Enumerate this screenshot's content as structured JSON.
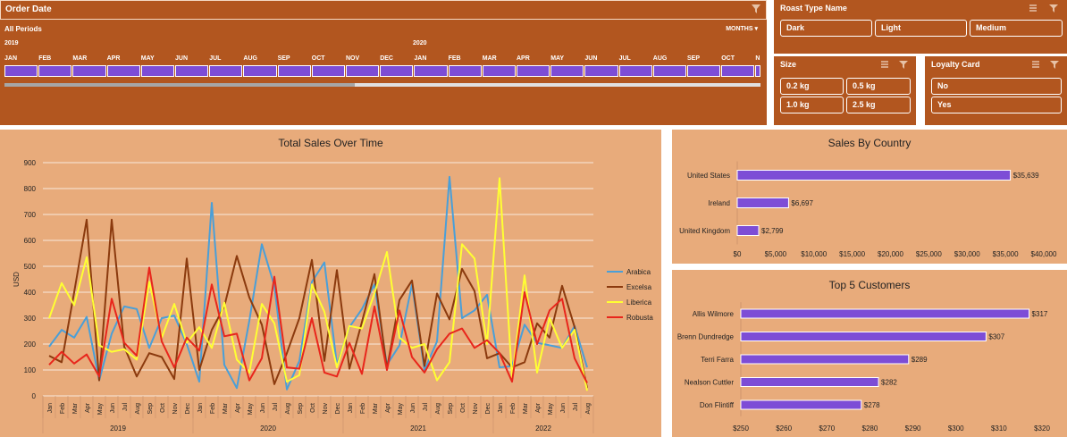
{
  "timeline": {
    "title": "Order Date",
    "periods_label": "All Periods",
    "level_label": "MONTHS",
    "years": [
      "2019",
      "2020"
    ],
    "months": [
      "JAN",
      "FEB",
      "MAR",
      "APR",
      "MAY",
      "JUN",
      "JUL",
      "AUG",
      "SEP",
      "OCT",
      "NOV",
      "DEC",
      "JAN",
      "FEB",
      "MAR",
      "APR",
      "MAY",
      "JUN",
      "JUL",
      "AUG",
      "SEP",
      "OCT",
      "N"
    ]
  },
  "slicers": {
    "roast": {
      "title": "Roast Type Name",
      "options": [
        "Dark",
        "Light",
        "Medium"
      ]
    },
    "size": {
      "title": "Size",
      "options": [
        "0.2 kg",
        "0.5 kg",
        "1.0 kg",
        "2.5 kg"
      ]
    },
    "loyalty": {
      "title": "Loyalty Card",
      "options": [
        "No",
        "Yes"
      ]
    }
  },
  "colors": {
    "panel_dark": "#b2561f",
    "panel_light": "#e8ab7b",
    "bar": "#7d4dd6",
    "arabica": "#4a9fd8",
    "excelsa": "#8b3a0e",
    "liberica": "#ffff33",
    "robusta": "#e8261c"
  },
  "chart_data": [
    {
      "type": "line",
      "title": "Total Sales Over Time",
      "ylabel": "USD",
      "ylim": [
        0,
        900
      ],
      "yticks": [
        0,
        100,
        200,
        300,
        400,
        500,
        600,
        700,
        800,
        900
      ],
      "x": [
        "Jan",
        "Feb",
        "Mar",
        "Apr",
        "May",
        "Jun",
        "Jul",
        "Aug",
        "Sep",
        "Oct",
        "Nov",
        "Dec",
        "Jan",
        "Feb",
        "Mar",
        "Apr",
        "May",
        "Jun",
        "Jul",
        "Aug",
        "Sep",
        "Oct",
        "Nov",
        "Dec",
        "Jan",
        "Feb",
        "Mar",
        "Apr",
        "May",
        "Jun",
        "Jul",
        "Aug",
        "Sep",
        "Oct",
        "Nov",
        "Dec",
        "Jan",
        "Feb",
        "Mar",
        "Apr",
        "May",
        "Jun",
        "Jul",
        "Aug"
      ],
      "year_groups": [
        {
          "label": "2019",
          "count": 12
        },
        {
          "label": "2020",
          "count": 12
        },
        {
          "label": "2021",
          "count": 12
        },
        {
          "label": "2022",
          "count": 8
        }
      ],
      "legend_position": "right",
      "series": [
        {
          "name": "Arabica",
          "values": [
            190,
            255,
            225,
            305,
            60,
            240,
            345,
            335,
            185,
            300,
            310,
            200,
            55,
            745,
            120,
            30,
            290,
            585,
            425,
            25,
            135,
            440,
            515,
            120,
            265,
            335,
            430,
            120,
            195,
            430,
            100,
            210,
            845,
            300,
            330,
            390,
            110,
            115,
            275,
            205,
            195,
            185,
            270,
            110
          ]
        },
        {
          "name": "Excelsa",
          "values": [
            155,
            130,
            400,
            680,
            60,
            680,
            190,
            75,
            165,
            150,
            65,
            530,
            100,
            255,
            345,
            540,
            380,
            275,
            45,
            165,
            300,
            525,
            135,
            485,
            105,
            285,
            470,
            105,
            370,
            445,
            115,
            395,
            295,
            490,
            405,
            145,
            165,
            110,
            130,
            280,
            225,
            425,
            265,
            30
          ]
        },
        {
          "name": "Liberica",
          "values": [
            300,
            435,
            350,
            535,
            195,
            170,
            180,
            140,
            440,
            225,
            355,
            205,
            265,
            185,
            360,
            140,
            90,
            355,
            280,
            55,
            80,
            430,
            325,
            110,
            270,
            260,
            395,
            555,
            225,
            185,
            200,
            60,
            130,
            585,
            530,
            200,
            840,
            70,
            465,
            90,
            300,
            185,
            255,
            20
          ]
        },
        {
          "name": "Robusta",
          "values": [
            120,
            170,
            125,
            160,
            75,
            375,
            205,
            155,
            495,
            210,
            110,
            225,
            175,
            430,
            230,
            240,
            60,
            145,
            460,
            110,
            105,
            300,
            90,
            75,
            205,
            85,
            345,
            100,
            330,
            150,
            90,
            180,
            240,
            260,
            185,
            215,
            165,
            55,
            400,
            200,
            330,
            375,
            145,
            50
          ]
        }
      ]
    },
    {
      "type": "bar",
      "title": "Sales By Country",
      "categories": [
        "United States",
        "Ireland",
        "United Kingdom"
      ],
      "values": [
        35639,
        6697,
        2799
      ],
      "value_labels": [
        "$35,639",
        "$6,697",
        "$2,799"
      ],
      "xlim": [
        0,
        40000
      ],
      "xticks": [
        "$0",
        "$5,000",
        "$10,000",
        "$15,000",
        "$20,000",
        "$25,000",
        "$30,000",
        "$35,000",
        "$40,000"
      ]
    },
    {
      "type": "bar",
      "title": "Top 5 Customers",
      "categories": [
        "Allis Wilmore",
        "Brenn Dundredge",
        "Terri Farra",
        "Nealson Cuttler",
        "Don Flintiff"
      ],
      "values": [
        317,
        307,
        289,
        282,
        278
      ],
      "value_labels": [
        "$317",
        "$307",
        "$289",
        "$282",
        "$278"
      ],
      "xlim": [
        250,
        320
      ],
      "xticks": [
        "$250",
        "$260",
        "$270",
        "$280",
        "$290",
        "$300",
        "$310",
        "$320"
      ]
    }
  ]
}
